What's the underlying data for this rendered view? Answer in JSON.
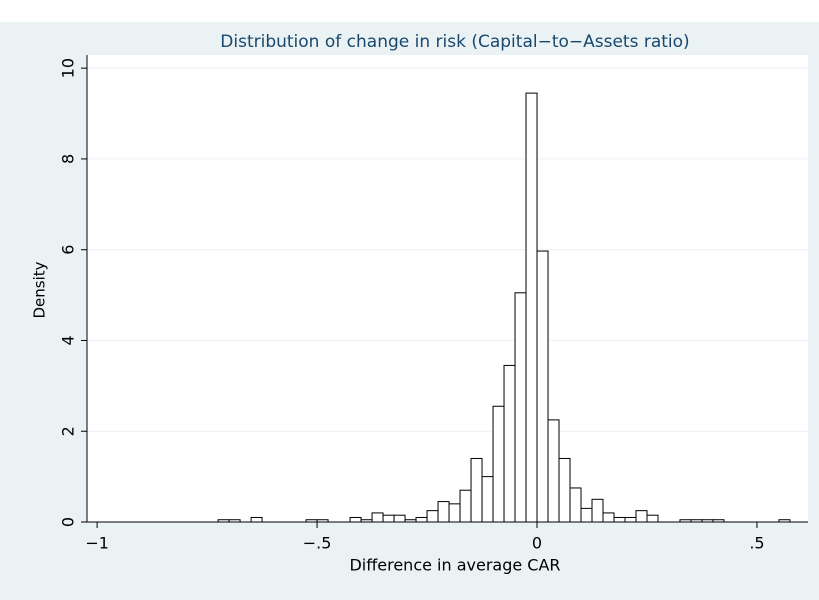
{
  "chart_data": {
    "type": "histogram",
    "title": "Distribution of change in risk (Capital−to−Assets ratio)",
    "x_label": "Difference in average CAR",
    "y_label": "Density",
    "bins": [
      -0.725,
      -0.7,
      -0.675,
      -0.65,
      -0.625,
      -0.6,
      -0.575,
      -0.55,
      -0.525,
      -0.5,
      -0.475,
      -0.45,
      -0.425,
      -0.4,
      -0.375,
      -0.35,
      -0.325,
      -0.3,
      -0.275,
      -0.25,
      -0.225,
      -0.2,
      -0.175,
      -0.15,
      -0.125,
      -0.1,
      -0.075,
      -0.05,
      -0.025,
      0,
      0.025,
      0.05,
      0.075,
      0.1,
      0.125,
      0.15,
      0.175,
      0.2,
      0.225,
      0.25,
      0.275,
      0.3,
      0.325,
      0.35,
      0.375,
      0.4,
      0.425,
      0.45,
      0.475,
      0.5,
      0.525,
      0.55,
      0.575
    ],
    "values": [
      0.05,
      0.05,
      0,
      0.1,
      0,
      0,
      0,
      0,
      0.05,
      0.05,
      0,
      0,
      0.1,
      0.05,
      0.2,
      0.15,
      0.15,
      0.05,
      0.1,
      0.25,
      0.45,
      0.4,
      0.7,
      1.4,
      1.0,
      2.55,
      3.45,
      5.05,
      9.45,
      5.97,
      2.25,
      1.4,
      0.75,
      0.3,
      0.5,
      0.2,
      0.1,
      0.1,
      0.25,
      0.15,
      0,
      0,
      0.05,
      0.05,
      0.05,
      0.05,
      0,
      0,
      0,
      0,
      0,
      0.05
    ],
    "color": "#ffffff",
    "edge_color": "#000000",
    "xlim": [
      -1.023,
      0.616
    ],
    "ylim": [
      0,
      10.29
    ],
    "xticks": [
      {
        "value": -1,
        "label": "−1"
      },
      {
        "value": -0.5,
        "label": "−.5"
      },
      0,
      {
        "value": 0.5,
        "label": ".5"
      }
    ],
    "yticks": [
      0,
      2,
      4,
      6,
      8,
      10
    ],
    "grid": true
  }
}
